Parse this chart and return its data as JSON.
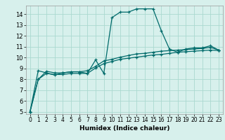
{
  "xlabel": "Humidex (Indice chaleur)",
  "background_color": "#d7f0ec",
  "grid_color": "#aad9d0",
  "line_color": "#006b6b",
  "xlim": [
    -0.5,
    23.5
  ],
  "ylim": [
    4.8,
    14.8
  ],
  "yticks": [
    5,
    6,
    7,
    8,
    9,
    10,
    11,
    12,
    13,
    14
  ],
  "xticks": [
    0,
    1,
    2,
    3,
    4,
    5,
    6,
    7,
    8,
    9,
    10,
    11,
    12,
    13,
    14,
    15,
    16,
    17,
    18,
    19,
    20,
    21,
    22,
    23
  ],
  "series": [
    {
      "x": [
        0,
        1,
        2,
        3,
        4,
        5,
        6,
        7,
        8,
        9,
        10,
        11,
        12,
        13,
        14,
        15,
        16,
        17,
        18,
        19,
        20,
        21,
        22,
        23
      ],
      "y": [
        5.0,
        8.8,
        8.6,
        8.4,
        8.6,
        8.7,
        8.7,
        8.55,
        9.8,
        8.55,
        13.7,
        14.2,
        14.2,
        14.5,
        14.5,
        14.5,
        12.5,
        10.8,
        10.5,
        10.8,
        10.9,
        10.9,
        11.1,
        10.7
      ]
    },
    {
      "x": [
        0,
        1,
        2,
        3,
        4,
        5,
        6,
        7,
        8,
        9,
        10,
        11,
        12,
        13,
        14,
        15,
        16,
        17,
        18,
        19,
        20,
        21,
        22,
        23
      ],
      "y": [
        5.0,
        8.0,
        8.75,
        8.6,
        8.6,
        8.7,
        8.7,
        8.8,
        9.2,
        9.7,
        9.85,
        10.05,
        10.2,
        10.35,
        10.4,
        10.5,
        10.6,
        10.65,
        10.7,
        10.75,
        10.8,
        10.85,
        10.95,
        10.7
      ]
    },
    {
      "x": [
        0,
        1,
        2,
        3,
        4,
        5,
        6,
        7,
        8,
        9,
        10,
        11,
        12,
        13,
        14,
        15,
        16,
        17,
        18,
        19,
        20,
        21,
        22,
        23
      ],
      "y": [
        5.0,
        8.0,
        8.55,
        8.45,
        8.45,
        8.55,
        8.55,
        8.55,
        9.05,
        9.45,
        9.65,
        9.85,
        9.95,
        10.05,
        10.15,
        10.25,
        10.3,
        10.4,
        10.5,
        10.55,
        10.6,
        10.65,
        10.7,
        10.65
      ]
    }
  ]
}
